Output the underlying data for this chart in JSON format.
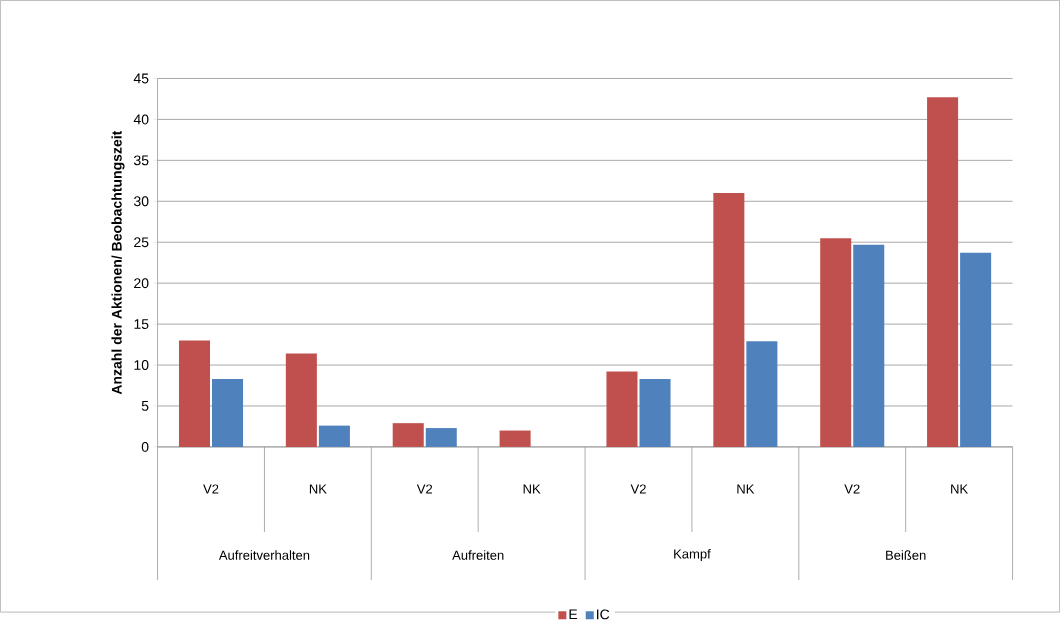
{
  "chart_data": {
    "type": "bar",
    "ylabel": "Anzahl der Aktionen/ Beobachtungszeit",
    "categories": [
      "V2",
      "NK",
      "V2",
      "NK",
      "V2",
      "NK",
      "V2",
      "NK"
    ],
    "annotations": [
      "Aufreitverhalten",
      "Aufreiten",
      "Kampf",
      "Beißen"
    ],
    "series": [
      {
        "name": "E",
        "color": "#c0504d",
        "values": [
          13.0,
          11.4,
          2.9,
          2.0,
          9.2,
          31.0,
          25.5,
          42.7
        ]
      },
      {
        "name": "IC",
        "color": "#4f81bd",
        "values": [
          8.3,
          2.6,
          2.3,
          0,
          8.3,
          12.9,
          24.7,
          23.7
        ]
      }
    ],
    "ylim": [
      0,
      45
    ],
    "yticks": [
      0,
      5,
      10,
      15,
      20,
      25,
      30,
      35,
      40,
      45
    ],
    "grid": "y",
    "legend": "bottom"
  }
}
